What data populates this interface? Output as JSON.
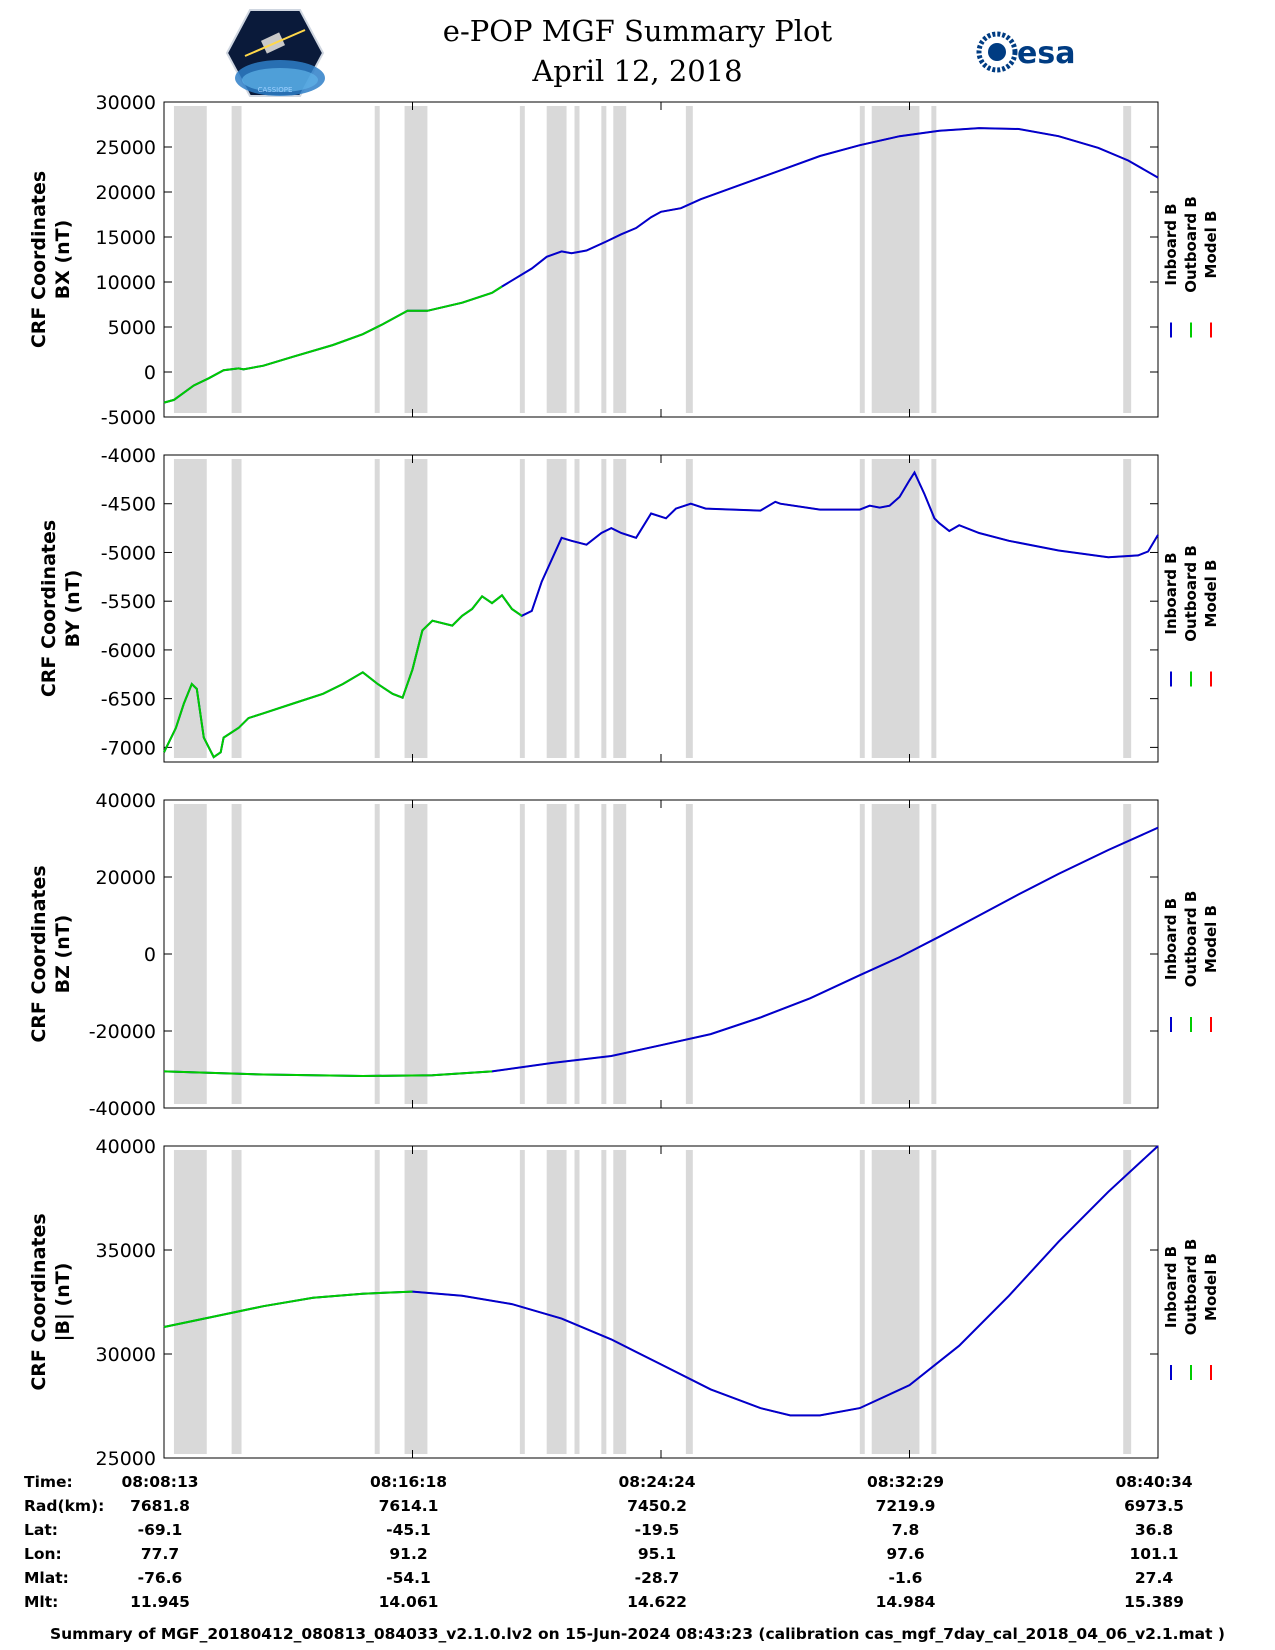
{
  "header": {
    "title_line1": "e-POP MGF Summary Plot",
    "title_line2": "April 12, 2018",
    "logo_left": "cassiope-mission-logo",
    "logo_left_text": "CASSIOPE",
    "logo_right": "esa-logo",
    "logo_right_text": "esa"
  },
  "colors": {
    "inboard": "#0000cc",
    "outboard": "#00cc00",
    "model": "#ff0000",
    "gap": "#d9d9d9"
  },
  "chart_data": [
    {
      "type": "line",
      "ylabel_line1": "CRF Coordinates",
      "ylabel_line2": "BX (nT)",
      "ylim": [
        -5000,
        30000
      ],
      "yticks": [
        -5000,
        0,
        5000,
        10000,
        15000,
        20000,
        25000,
        30000
      ],
      "legend": [
        "Inboard B",
        "Outboard B",
        "Model B"
      ],
      "outboard_end_t": 0.36,
      "points": [
        [
          0,
          -3400
        ],
        [
          0.01,
          -3100
        ],
        [
          0.03,
          -1500
        ],
        [
          0.045,
          -700
        ],
        [
          0.06,
          200
        ],
        [
          0.075,
          400
        ],
        [
          0.08,
          300
        ],
        [
          0.1,
          700
        ],
        [
          0.13,
          1700
        ],
        [
          0.17,
          3000
        ],
        [
          0.2,
          4200
        ],
        [
          0.22,
          5300
        ],
        [
          0.245,
          6800
        ],
        [
          0.265,
          6800
        ],
        [
          0.3,
          7700
        ],
        [
          0.33,
          8800
        ],
        [
          0.34,
          9500
        ],
        [
          0.37,
          11500
        ],
        [
          0.385,
          12800
        ],
        [
          0.4,
          13400
        ],
        [
          0.41,
          13200
        ],
        [
          0.425,
          13500
        ],
        [
          0.445,
          14500
        ],
        [
          0.46,
          15300
        ],
        [
          0.475,
          16000
        ],
        [
          0.49,
          17200
        ],
        [
          0.5,
          17800
        ],
        [
          0.52,
          18200
        ],
        [
          0.54,
          19200
        ],
        [
          0.58,
          20800
        ],
        [
          0.62,
          22400
        ],
        [
          0.66,
          24000
        ],
        [
          0.7,
          25200
        ],
        [
          0.74,
          26200
        ],
        [
          0.78,
          26800
        ],
        [
          0.82,
          27100
        ],
        [
          0.86,
          27000
        ],
        [
          0.9,
          26200
        ],
        [
          0.94,
          24900
        ],
        [
          0.97,
          23500
        ],
        [
          1.0,
          21600
        ]
      ]
    },
    {
      "type": "line",
      "ylabel_line1": "CRF Coordinates",
      "ylabel_line2": "BY (nT)",
      "ylim": [
        -7150,
        -4000
      ],
      "yticks": [
        -7000,
        -6500,
        -6000,
        -5500,
        -5000,
        -4500,
        -4000
      ],
      "legend": [
        "Inboard B",
        "Outboard B",
        "Model B"
      ],
      "outboard_end_t": 0.36,
      "points": [
        [
          0,
          -7050
        ],
        [
          0.012,
          -6800
        ],
        [
          0.02,
          -6550
        ],
        [
          0.028,
          -6350
        ],
        [
          0.033,
          -6400
        ],
        [
          0.04,
          -6900
        ],
        [
          0.05,
          -7100
        ],
        [
          0.057,
          -7050
        ],
        [
          0.06,
          -6900
        ],
        [
          0.075,
          -6800
        ],
        [
          0.085,
          -6700
        ],
        [
          0.1,
          -6650
        ],
        [
          0.13,
          -6550
        ],
        [
          0.16,
          -6450
        ],
        [
          0.18,
          -6350
        ],
        [
          0.2,
          -6230
        ],
        [
          0.215,
          -6350
        ],
        [
          0.23,
          -6450
        ],
        [
          0.24,
          -6490
        ],
        [
          0.25,
          -6200
        ],
        [
          0.26,
          -5800
        ],
        [
          0.27,
          -5700
        ],
        [
          0.29,
          -5750
        ],
        [
          0.3,
          -5650
        ],
        [
          0.31,
          -5580
        ],
        [
          0.32,
          -5450
        ],
        [
          0.33,
          -5520
        ],
        [
          0.34,
          -5440
        ],
        [
          0.35,
          -5580
        ],
        [
          0.36,
          -5650
        ],
        [
          0.37,
          -5600
        ],
        [
          0.38,
          -5300
        ],
        [
          0.4,
          -4850
        ],
        [
          0.41,
          -4880
        ],
        [
          0.425,
          -4920
        ],
        [
          0.44,
          -4800
        ],
        [
          0.45,
          -4750
        ],
        [
          0.46,
          -4800
        ],
        [
          0.475,
          -4850
        ],
        [
          0.49,
          -4600
        ],
        [
          0.505,
          -4650
        ],
        [
          0.515,
          -4550
        ],
        [
          0.53,
          -4500
        ],
        [
          0.545,
          -4550
        ],
        [
          0.6,
          -4570
        ],
        [
          0.615,
          -4480
        ],
        [
          0.62,
          -4500
        ],
        [
          0.66,
          -4560
        ],
        [
          0.7,
          -4560
        ],
        [
          0.71,
          -4520
        ],
        [
          0.72,
          -4540
        ],
        [
          0.73,
          -4520
        ],
        [
          0.74,
          -4430
        ],
        [
          0.75,
          -4260
        ],
        [
          0.755,
          -4180
        ],
        [
          0.765,
          -4400
        ],
        [
          0.775,
          -4650
        ],
        [
          0.78,
          -4700
        ],
        [
          0.79,
          -4780
        ],
        [
          0.8,
          -4720
        ],
        [
          0.82,
          -4800
        ],
        [
          0.85,
          -4880
        ],
        [
          0.9,
          -4980
        ],
        [
          0.95,
          -5050
        ],
        [
          0.98,
          -5030
        ],
        [
          0.99,
          -4990
        ],
        [
          1.0,
          -4820
        ]
      ]
    },
    {
      "type": "line",
      "ylabel_line1": "CRF Coordinates",
      "ylabel_line2": "BZ (nT)",
      "ylim": [
        -40000,
        40000
      ],
      "yticks": [
        -40000,
        -20000,
        0,
        20000,
        40000
      ],
      "legend": [
        "Inboard B",
        "Outboard B",
        "Model B"
      ],
      "outboard_end_t": 0.36,
      "points": [
        [
          0,
          -30500
        ],
        [
          0.1,
          -31300
        ],
        [
          0.2,
          -31700
        ],
        [
          0.27,
          -31500
        ],
        [
          0.33,
          -30500
        ],
        [
          0.39,
          -28300
        ],
        [
          0.45,
          -26500
        ],
        [
          0.5,
          -23700
        ],
        [
          0.55,
          -20800
        ],
        [
          0.6,
          -16500
        ],
        [
          0.65,
          -11500
        ],
        [
          0.7,
          -5500
        ],
        [
          0.74,
          -800
        ],
        [
          0.78,
          4500
        ],
        [
          0.82,
          10000
        ],
        [
          0.86,
          15500
        ],
        [
          0.9,
          20800
        ],
        [
          0.95,
          27000
        ],
        [
          1.0,
          32800
        ]
      ]
    },
    {
      "type": "line",
      "ylabel_line1": "CRF Coordinates",
      "ylabel_line2": "|B| (nT)",
      "ylim": [
        25000,
        40000
      ],
      "yticks": [
        25000,
        30000,
        35000,
        40000
      ],
      "legend": [
        "Inboard B",
        "Outboard B",
        "Model B"
      ],
      "outboard_end_t": 0.27,
      "points": [
        [
          0,
          31300
        ],
        [
          0.05,
          31800
        ],
        [
          0.1,
          32300
        ],
        [
          0.15,
          32700
        ],
        [
          0.2,
          32900
        ],
        [
          0.25,
          33000
        ],
        [
          0.3,
          32800
        ],
        [
          0.35,
          32400
        ],
        [
          0.4,
          31700
        ],
        [
          0.45,
          30700
        ],
        [
          0.5,
          29500
        ],
        [
          0.55,
          28300
        ],
        [
          0.6,
          27400
        ],
        [
          0.63,
          27050
        ],
        [
          0.66,
          27050
        ],
        [
          0.7,
          27400
        ],
        [
          0.75,
          28500
        ],
        [
          0.8,
          30400
        ],
        [
          0.85,
          32800
        ],
        [
          0.9,
          35400
        ],
        [
          0.95,
          37800
        ],
        [
          1.0,
          40000
        ]
      ]
    }
  ],
  "gap_intervals": [
    [
      0.01,
      0.043
    ],
    [
      0.068,
      0.078
    ],
    [
      0.212,
      0.217
    ],
    [
      0.242,
      0.265
    ],
    [
      0.358,
      0.363
    ],
    [
      0.385,
      0.405
    ],
    [
      0.413,
      0.418
    ],
    [
      0.44,
      0.445
    ],
    [
      0.452,
      0.465
    ],
    [
      0.525,
      0.532
    ],
    [
      0.7,
      0.705
    ],
    [
      0.712,
      0.76
    ],
    [
      0.772,
      0.777
    ],
    [
      0.965,
      0.973
    ]
  ],
  "time_axis": {
    "labels": [
      "Time:",
      "Rad(km):",
      "Lat:",
      "Lon:",
      "Mlat:",
      "Mlt:"
    ],
    "columns": [
      [
        "08:08:13",
        "7681.8",
        "-69.1",
        "77.7",
        "-76.6",
        "11.945"
      ],
      [
        "08:16:18",
        "7614.1",
        "-45.1",
        "91.2",
        "-54.1",
        "14.061"
      ],
      [
        "08:24:24",
        "7450.2",
        "-19.5",
        "95.1",
        "-28.7",
        "14.622"
      ],
      [
        "08:32:29",
        "7219.9",
        "7.8",
        "97.6",
        "-1.6",
        "14.984"
      ],
      [
        "08:40:34",
        "6973.5",
        "36.8",
        "101.1",
        "27.4",
        "15.389"
      ]
    ],
    "tick_fractions": [
      0.0,
      0.25,
      0.5,
      0.75,
      1.0
    ]
  },
  "footer": "Summary of MGF_20180412_080813_084033_v2.1.0.lv2 on 15-Jun-2024 08:43:23 (calibration cas_mgf_7day_cal_2018_04_06_v2.1.mat )"
}
